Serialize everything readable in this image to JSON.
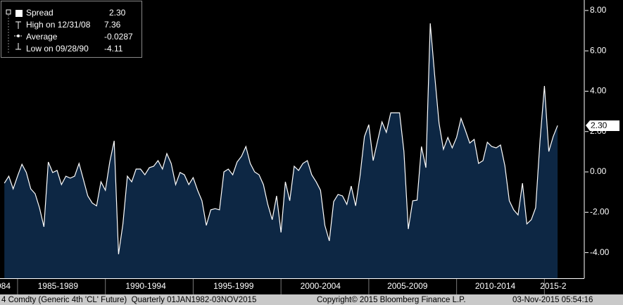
{
  "chart_data": {
    "type": "area",
    "series": [
      {
        "name": "Spread",
        "color": "#ffffff",
        "fill": "#0d2744",
        "values": [
          -0.56,
          -0.21,
          -0.84,
          -0.21,
          0.38,
          -0.03,
          -0.84,
          -1.08,
          -1.78,
          -2.72,
          0.49,
          -0.03,
          0.07,
          -0.63,
          -0.21,
          -0.31,
          -0.21,
          0.42,
          -0.38,
          -1.19,
          -1.54,
          -1.68,
          -0.49,
          -0.91,
          0.49,
          1.54,
          -4.08,
          -2.58,
          -0.21,
          -0.49,
          0.14,
          0.14,
          -0.14,
          0.21,
          0.28,
          0.56,
          0.14,
          0.91,
          0.42,
          -0.63,
          -0.03,
          -0.14,
          -0.63,
          -0.28,
          -0.91,
          -1.43,
          -2.65,
          -1.88,
          -1.82,
          -1.88,
          0.0,
          0.14,
          -0.14,
          0.49,
          0.77,
          1.26,
          0.42,
          0.0,
          -0.14,
          -0.63,
          -1.61,
          -2.37,
          -1.19,
          -3.0,
          -0.49,
          -1.43,
          0.28,
          0.07,
          0.42,
          0.56,
          -0.14,
          -0.49,
          -0.91,
          -2.65,
          -3.42,
          -1.47,
          -1.12,
          -1.19,
          -1.61,
          -0.7,
          -1.68,
          -0.21,
          1.75,
          2.34,
          0.56,
          1.54,
          2.48,
          1.96,
          2.93,
          2.93,
          2.93,
          1.01,
          -2.83,
          -1.43,
          -1.4,
          1.26,
          0.21,
          7.36,
          4.82,
          2.41,
          1.12,
          1.71,
          1.19,
          1.71,
          2.65,
          2.06,
          1.43,
          1.61,
          0.42,
          0.56,
          1.47,
          1.26,
          1.19,
          1.33,
          0.31,
          -1.43,
          -1.88,
          -2.13,
          -0.56,
          -2.58,
          -2.37,
          -1.78,
          1.54,
          4.26,
          1.01,
          1.75,
          2.3
        ]
      }
    ],
    "x": [
      1984.25,
      1984.5,
      1984.75,
      1985,
      1985.25,
      1985.5,
      1985.75,
      1986,
      1986.25,
      1986.5,
      1986.75,
      1987,
      1987.25,
      1987.5,
      1987.75,
      1988,
      1988.25,
      1988.5,
      1988.75,
      1989,
      1989.25,
      1989.5,
      1989.75,
      1990,
      1990.25,
      1990.5,
      1990.75,
      1991,
      1991.25,
      1991.5,
      1991.75,
      1992,
      1992.25,
      1992.5,
      1992.75,
      1993,
      1993.25,
      1993.5,
      1993.75,
      1994,
      1994.25,
      1994.5,
      1994.75,
      1995,
      1995.25,
      1995.5,
      1995.75,
      1996,
      1996.25,
      1996.5,
      1996.75,
      1997,
      1997.25,
      1997.5,
      1997.75,
      1998,
      1998.25,
      1998.5,
      1998.75,
      1999,
      1999.25,
      1999.5,
      1999.75,
      2000,
      2000.25,
      2000.5,
      2000.75,
      2001,
      2001.25,
      2001.5,
      2001.75,
      2002,
      2002.25,
      2002.5,
      2002.75,
      2003,
      2003.25,
      2003.5,
      2003.75,
      2004,
      2004.25,
      2004.5,
      2004.75,
      2005,
      2005.25,
      2005.5,
      2005.75,
      2006,
      2006.25,
      2006.5,
      2006.75,
      2007,
      2007.25,
      2007.5,
      2007.75,
      2008,
      2008.25,
      2008.5,
      2008.75,
      2009,
      2009.25,
      2009.5,
      2009.75,
      2010,
      2010.25,
      2010.5,
      2010.75,
      2011,
      2011.25,
      2011.5,
      2011.75,
      2012,
      2012.25,
      2012.5,
      2012.75,
      2013,
      2013.25,
      2013.5,
      2013.75,
      2014,
      2014.25,
      2014.5,
      2014.75,
      2015,
      2015.25,
      2015.5,
      2015.75
    ],
    "xlim": [
      1984,
      2017.27
    ],
    "xticks": [
      1985,
      1990,
      1995,
      2000,
      2005,
      2010,
      2015
    ],
    "xtick_labels": [
      {
        "value": 1984.2,
        "label": "984"
      },
      {
        "value": 1987.3,
        "label": "1985-1989"
      },
      {
        "value": 1992.3,
        "label": "1990-1994"
      },
      {
        "value": 1997.3,
        "label": "1995-1999"
      },
      {
        "value": 2002.25,
        "label": "2000-2004"
      },
      {
        "value": 2007.2,
        "label": "2005-2009"
      },
      {
        "value": 2012.2,
        "label": "2010-2014"
      },
      {
        "value": 2015.5,
        "label": "2015-2"
      }
    ],
    "ylim": [
      -5.27,
      8.52
    ],
    "yticks": [
      {
        "value": 8,
        "label": "8.00"
      },
      {
        "value": 6,
        "label": "6.00"
      },
      {
        "value": 4,
        "label": "4.00"
      },
      {
        "value": 2,
        "label": "2.00"
      },
      {
        "value": 0,
        "label": "0.00"
      },
      {
        "value": -2,
        "label": "-2.00"
      },
      {
        "value": -4,
        "label": "-4.00"
      }
    ],
    "last_value_label": "2.30",
    "legend_stats": [
      {
        "label": "High on 12/31/08",
        "value": 7.36
      },
      {
        "label": "Average",
        "value": -0.0287
      },
      {
        "label": "Low on 09/28/90",
        "value": -4.11
      }
    ],
    "footer": [
      "4 Comdty (Generic 4th 'CL' Future)  Quarterly 01JAN1982-03NOV2015",
      "Copyright© 2015 Bloomberg Finance L.P.",
      "03-Nov-2015 05:54:16"
    ]
  }
}
